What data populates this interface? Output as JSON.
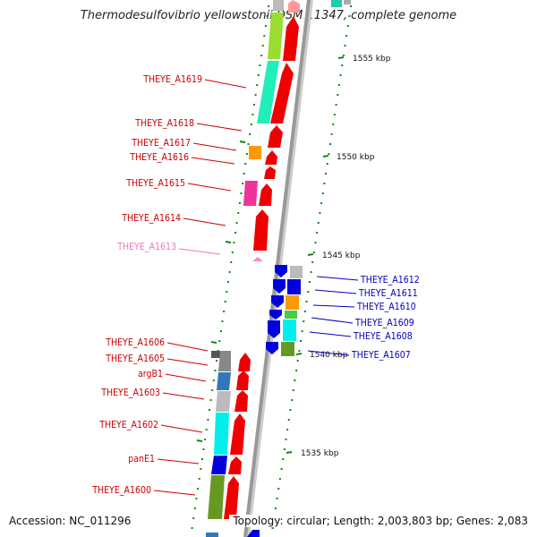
{
  "title": "Thermodesulfovibrio yellowstonii DSM 11347, complete genome",
  "footer": {
    "accession": "Accession: NC_011296",
    "topology": "Topology: circular; Length: 2,003,803 bp; Genes: 2,083"
  },
  "ticks": [
    "1555 kbp",
    "1550 kbp",
    "1545 kbp",
    "1540 kbp",
    "1535 kbp"
  ],
  "left_labels": [
    "THEYE_A1619",
    "THEYE_A1618",
    "THEYE_A1617",
    "THEYE_A1616",
    "THEYE_A1615",
    "THEYE_A1614",
    "THEYE_A1613",
    "THEYE_A1606",
    "THEYE_A1605",
    "argB1",
    "THEYE_A1603",
    "THEYE_A1602",
    "panE1",
    "THEYE_A1600"
  ],
  "right_labels": [
    "THEYE_A1612",
    "THEYE_A1611",
    "THEYE_A1610",
    "THEYE_A1609",
    "THEYE_A1608",
    "THEYE_A1607"
  ],
  "colors": {
    "red_label": "#cc0000",
    "pink_label": "#ee77bb",
    "blue_label": "#0000bb",
    "backbone": "#999999",
    "tick_green": "#118811"
  }
}
